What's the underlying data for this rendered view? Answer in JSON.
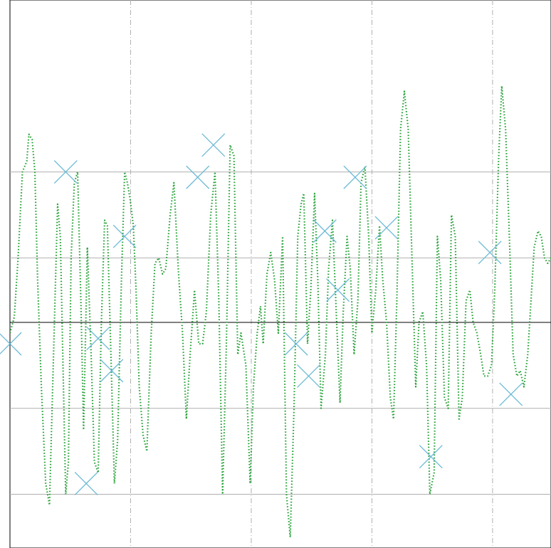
{
  "chart_data": {
    "type": "line",
    "title": "",
    "xlabel": "",
    "ylabel": "",
    "xlim": [
      0,
      100
    ],
    "ylim": [
      -2.1,
      3.0
    ],
    "grid": {
      "horizontal": true,
      "horizontal_style": "solid",
      "vertical": true,
      "vertical_style": "dashdot",
      "x_gridlines": [
        22.3,
        44.6,
        66.9,
        89.2
      ],
      "y_gridlines": [
        -1.6,
        -0.8,
        0.6,
        1.4
      ]
    },
    "zero_line": true,
    "series": [
      {
        "style": "dotted-line",
        "color": "#2aa33a",
        "points": [
          [
            0.0,
            -0.1
          ],
          [
            0.8,
            0.05
          ],
          [
            1.5,
            0.6
          ],
          [
            2.3,
            1.4
          ],
          [
            3.1,
            1.5
          ],
          [
            3.5,
            1.75
          ],
          [
            4.1,
            1.7
          ],
          [
            4.6,
            1.4
          ],
          [
            5.1,
            0.4
          ],
          [
            5.8,
            -0.6
          ],
          [
            6.6,
            -1.5
          ],
          [
            7.3,
            -1.7
          ],
          [
            8.0,
            -0.4
          ],
          [
            8.8,
            1.1
          ],
          [
            9.3,
            0.8
          ],
          [
            9.8,
            -0.4
          ],
          [
            10.3,
            -1.6
          ],
          [
            10.8,
            -1.3
          ],
          [
            11.3,
            0.6
          ],
          [
            11.9,
            1.3
          ],
          [
            12.5,
            1.4
          ],
          [
            13.1,
            0.2
          ],
          [
            13.6,
            -1.0
          ],
          [
            14.3,
            0.7
          ],
          [
            15.0,
            -0.3
          ],
          [
            15.6,
            -1.3
          ],
          [
            16.3,
            -1.4
          ],
          [
            16.9,
            0.0
          ],
          [
            17.5,
            0.95
          ],
          [
            18.0,
            0.9
          ],
          [
            18.6,
            -0.2
          ],
          [
            19.3,
            -1.5
          ],
          [
            19.9,
            -1.1
          ],
          [
            20.6,
            0.4
          ],
          [
            21.2,
            1.4
          ],
          [
            21.7,
            1.3
          ],
          [
            22.2,
            1.15
          ],
          [
            22.8,
            0.9
          ],
          [
            23.3,
            0.3
          ],
          [
            23.9,
            -0.6
          ],
          [
            24.6,
            -1.05
          ],
          [
            25.3,
            -1.2
          ],
          [
            26.1,
            -0.1
          ],
          [
            26.8,
            0.55
          ],
          [
            27.5,
            0.6
          ],
          [
            28.2,
            0.45
          ],
          [
            28.8,
            0.5
          ],
          [
            29.6,
            1.0
          ],
          [
            30.3,
            1.3
          ],
          [
            31.1,
            0.5
          ],
          [
            31.9,
            -0.1
          ],
          [
            32.6,
            -0.9
          ],
          [
            33.3,
            -0.3
          ],
          [
            34.1,
            0.3
          ],
          [
            34.9,
            -0.2
          ],
          [
            35.6,
            -0.2
          ],
          [
            36.3,
            0.1
          ],
          [
            37.1,
            1.0
          ],
          [
            37.9,
            1.4
          ],
          [
            38.6,
            0.2
          ],
          [
            39.3,
            -1.6
          ],
          [
            40.0,
            -0.2
          ],
          [
            40.7,
            1.65
          ],
          [
            41.4,
            1.55
          ],
          [
            42.1,
            -0.3
          ],
          [
            42.7,
            -0.1
          ],
          [
            43.6,
            -0.4
          ],
          [
            44.4,
            -1.5
          ],
          [
            45.0,
            -0.6
          ],
          [
            45.7,
            -0.1
          ],
          [
            46.3,
            0.15
          ],
          [
            46.8,
            -0.2
          ],
          [
            47.5,
            0.45
          ],
          [
            48.2,
            0.65
          ],
          [
            48.9,
            0.4
          ],
          [
            49.6,
            -0.1
          ],
          [
            50.4,
            0.8
          ],
          [
            51.1,
            -1.6
          ],
          [
            51.8,
            -2.0
          ],
          [
            52.5,
            -0.8
          ],
          [
            53.2,
            0.8
          ],
          [
            53.8,
            1.1
          ],
          [
            54.3,
            1.2
          ],
          [
            55.0,
            -0.2
          ],
          [
            55.6,
            0.3
          ],
          [
            56.3,
            1.2
          ],
          [
            56.9,
            0.4
          ],
          [
            57.5,
            -0.8
          ],
          [
            58.3,
            -0.3
          ],
          [
            58.9,
            0.5
          ],
          [
            59.6,
            0.95
          ],
          [
            60.3,
            0.1
          ],
          [
            61.0,
            -0.75
          ],
          [
            61.6,
            0.1
          ],
          [
            62.3,
            0.8
          ],
          [
            62.9,
            0.5
          ],
          [
            63.6,
            -0.3
          ],
          [
            64.3,
            0.2
          ],
          [
            64.9,
            1.3
          ],
          [
            65.6,
            1.45
          ],
          [
            66.3,
            0.8
          ],
          [
            66.9,
            -0.1
          ],
          [
            67.6,
            0.3
          ],
          [
            68.3,
            0.9
          ],
          [
            68.9,
            0.4
          ],
          [
            69.6,
            0.0
          ],
          [
            70.3,
            -0.7
          ],
          [
            70.9,
            -0.9
          ],
          [
            71.5,
            0.2
          ],
          [
            72.2,
            1.8
          ],
          [
            72.9,
            2.15
          ],
          [
            73.6,
            1.8
          ],
          [
            74.3,
            0.6
          ],
          [
            75.0,
            -0.6
          ],
          [
            75.6,
            0.0
          ],
          [
            76.3,
            0.1
          ],
          [
            77.0,
            -0.4
          ],
          [
            77.6,
            -1.6
          ],
          [
            78.4,
            -1.4
          ],
          [
            79.0,
            0.8
          ],
          [
            79.6,
            0.4
          ],
          [
            80.3,
            -0.7
          ],
          [
            81.0,
            -0.8
          ],
          [
            81.6,
            1.0
          ],
          [
            82.3,
            0.8
          ],
          [
            83.0,
            -0.9
          ],
          [
            83.6,
            -0.7
          ],
          [
            84.3,
            0.2
          ],
          [
            85.0,
            0.3
          ],
          [
            85.6,
            0.0
          ],
          [
            86.3,
            -0.1
          ],
          [
            87.0,
            -0.3
          ],
          [
            87.6,
            -0.5
          ],
          [
            88.3,
            -0.5
          ],
          [
            89.0,
            -0.4
          ],
          [
            89.6,
            0.3
          ],
          [
            90.3,
            1.5
          ],
          [
            90.9,
            2.2
          ],
          [
            91.6,
            1.8
          ],
          [
            92.3,
            0.8
          ],
          [
            93.0,
            -0.3
          ],
          [
            93.7,
            -0.5
          ],
          [
            94.3,
            -0.45
          ],
          [
            95.0,
            -0.6
          ],
          [
            95.7,
            -0.3
          ],
          [
            96.3,
            0.2
          ],
          [
            96.9,
            0.7
          ],
          [
            97.6,
            0.85
          ],
          [
            98.2,
            0.8
          ],
          [
            98.8,
            0.6
          ],
          [
            99.4,
            0.55
          ],
          [
            100.0,
            0.6
          ]
        ]
      },
      {
        "style": "x-markers",
        "color": "#6bbad6",
        "points": [
          [
            0.0,
            -0.2
          ],
          [
            10.3,
            1.4
          ],
          [
            14.1,
            -1.5
          ],
          [
            16.3,
            -0.15
          ],
          [
            18.8,
            -0.45
          ],
          [
            21.2,
            0.8
          ],
          [
            34.7,
            1.35
          ],
          [
            37.6,
            1.65
          ],
          [
            52.9,
            -0.2
          ],
          [
            55.2,
            -0.5
          ],
          [
            58.2,
            0.85
          ],
          [
            60.6,
            0.3
          ],
          [
            63.8,
            1.35
          ],
          [
            69.6,
            0.88
          ],
          [
            77.8,
            -1.25
          ],
          [
            88.7,
            0.65
          ],
          [
            92.6,
            -0.67
          ]
        ]
      }
    ]
  }
}
